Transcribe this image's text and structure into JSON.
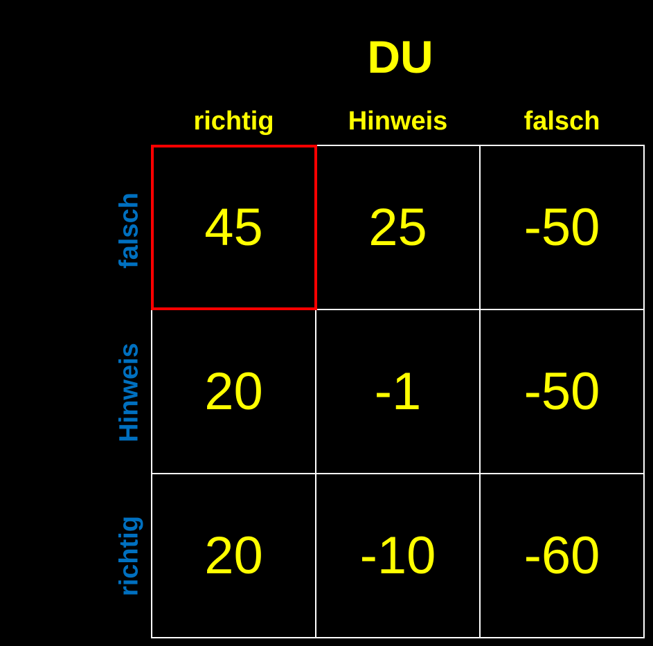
{
  "title": "DU",
  "columns": [
    "richtig",
    "Hinweis",
    "falsch"
  ],
  "rows": [
    "falsch",
    "Hinweis",
    "richtig"
  ],
  "cells": [
    [
      "45",
      "25",
      "-50"
    ],
    [
      "20",
      "-1",
      "-50"
    ],
    [
      "20",
      "-10",
      "-60"
    ]
  ],
  "highlighted_cell": {
    "row": 0,
    "col": 0
  },
  "colors": {
    "background": "#000000",
    "value_text": "#ffff00",
    "row_label": "#0070c0",
    "grid_line": "#ffffff",
    "highlight": "#ff0000"
  }
}
